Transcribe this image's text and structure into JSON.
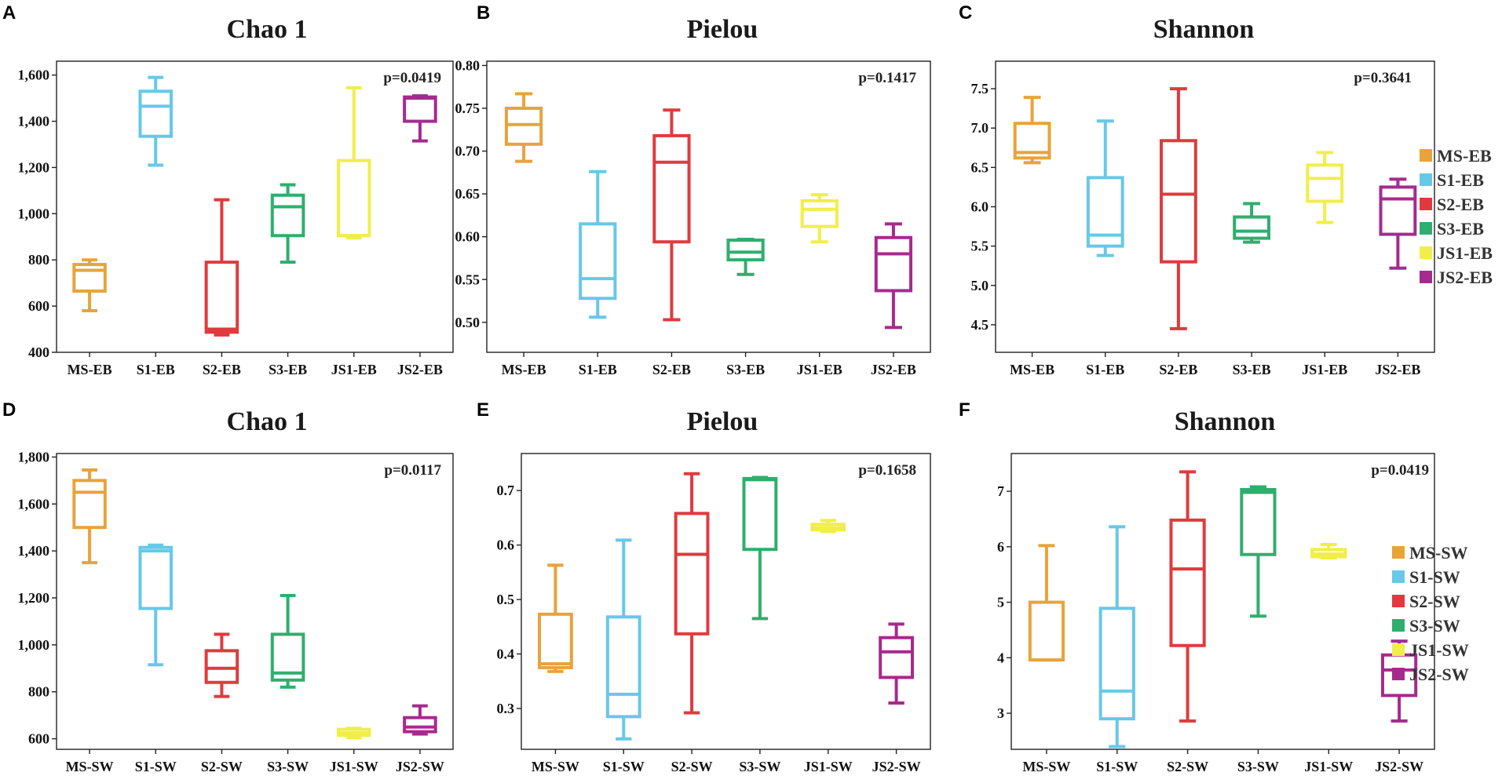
{
  "chart_data": [
    {
      "panel": "A",
      "type": "box",
      "title": "Chao 1",
      "pvalue_label": "p=0.0419",
      "categories": [
        "MS-EB",
        "S1-EB",
        "S2-EB",
        "S3-EB",
        "JS1-EB",
        "JS2-EB"
      ],
      "ylim": [
        400,
        1660
      ],
      "yticks": [
        400,
        600,
        800,
        1000,
        1200,
        1400,
        1600
      ],
      "ytick_labels": [
        "400",
        "600",
        "800",
        "1,000",
        "1,200",
        "1,400",
        "1,600"
      ],
      "boxes": [
        {
          "min": 580,
          "q1": 665,
          "median": 755,
          "q3": 780,
          "max": 800
        },
        {
          "min": 1210,
          "q1": 1335,
          "median": 1465,
          "q3": 1530,
          "max": 1590
        },
        {
          "min": 475,
          "q1": 487,
          "median": 500,
          "q3": 790,
          "max": 1060
        },
        {
          "min": 790,
          "q1": 905,
          "median": 1030,
          "q3": 1080,
          "max": 1125
        },
        {
          "min": 895,
          "q1": 905,
          "median": 905,
          "q3": 1230,
          "max": 1545
        },
        {
          "min": 1315,
          "q1": 1400,
          "median": 1500,
          "q3": 1505,
          "max": 1510
        }
      ]
    },
    {
      "panel": "B",
      "type": "box",
      "title": "Pielou",
      "pvalue_label": "p=0.1417",
      "categories": [
        "MS-EB",
        "S1-EB",
        "S2-EB",
        "S3-EB",
        "JS1-EB",
        "JS2-EB"
      ],
      "ylim": [
        0.465,
        0.805
      ],
      "yticks": [
        0.5,
        0.55,
        0.6,
        0.65,
        0.7,
        0.75,
        0.8
      ],
      "ytick_labels": [
        "0.50",
        "0.55",
        "0.60",
        "0.65",
        "0.70",
        "0.75",
        "0.80"
      ],
      "boxes": [
        {
          "min": 0.688,
          "q1": 0.708,
          "median": 0.731,
          "q3": 0.75,
          "max": 0.767
        },
        {
          "min": 0.506,
          "q1": 0.528,
          "median": 0.551,
          "q3": 0.615,
          "max": 0.676
        },
        {
          "min": 0.503,
          "q1": 0.594,
          "median": 0.687,
          "q3": 0.718,
          "max": 0.748
        },
        {
          "min": 0.556,
          "q1": 0.573,
          "median": 0.582,
          "q3": 0.596,
          "max": 0.597
        },
        {
          "min": 0.594,
          "q1": 0.612,
          "median": 0.632,
          "q3": 0.642,
          "max": 0.649
        },
        {
          "min": 0.494,
          "q1": 0.537,
          "median": 0.58,
          "q3": 0.599,
          "max": 0.615
        }
      ]
    },
    {
      "panel": "C",
      "type": "box",
      "title": "Shannon",
      "pvalue_label": "p=0.3641",
      "categories": [
        "MS-EB",
        "S1-EB",
        "S2-EB",
        "S3-EB",
        "JS1-EB",
        "JS2-EB"
      ],
      "ylim": [
        4.15,
        7.85
      ],
      "yticks": [
        4.5,
        5.0,
        5.5,
        6.0,
        6.5,
        7.0,
        7.5
      ],
      "ytick_labels": [
        "4.5",
        "5.0",
        "5.5",
        "6.0",
        "6.5",
        "7.0",
        "7.5"
      ],
      "boxes": [
        {
          "min": 6.56,
          "q1": 6.62,
          "median": 6.69,
          "q3": 7.06,
          "max": 7.39
        },
        {
          "min": 5.38,
          "q1": 5.5,
          "median": 5.64,
          "q3": 6.37,
          "max": 7.09
        },
        {
          "min": 4.45,
          "q1": 5.3,
          "median": 6.16,
          "q3": 6.84,
          "max": 7.5
        },
        {
          "min": 5.55,
          "q1": 5.6,
          "median": 5.69,
          "q3": 5.87,
          "max": 6.04
        },
        {
          "min": 5.8,
          "q1": 6.07,
          "median": 6.36,
          "q3": 6.53,
          "max": 6.69
        },
        {
          "min": 5.22,
          "q1": 5.65,
          "median": 6.1,
          "q3": 6.25,
          "max": 6.35
        }
      ]
    },
    {
      "panel": "D",
      "type": "box",
      "title": "Chao 1",
      "pvalue_label": "p=0.0117",
      "categories": [
        "MS-SW",
        "S1-SW",
        "S2-SW",
        "S3-SW",
        "JS1-SW",
        "JS2-SW"
      ],
      "ylim": [
        555,
        1815
      ],
      "yticks": [
        600,
        800,
        1000,
        1200,
        1400,
        1600,
        1800
      ],
      "ytick_labels": [
        "600",
        "800",
        "1,000",
        "1,200",
        "1,400",
        "1,600",
        "1,800"
      ],
      "boxes": [
        {
          "min": 1350,
          "q1": 1500,
          "median": 1650,
          "q3": 1700,
          "max": 1745
        },
        {
          "min": 915,
          "q1": 1155,
          "median": 1400,
          "q3": 1415,
          "max": 1425
        },
        {
          "min": 780,
          "q1": 840,
          "median": 900,
          "q3": 975,
          "max": 1045
        },
        {
          "min": 820,
          "q1": 850,
          "median": 880,
          "q3": 1045,
          "max": 1210
        },
        {
          "min": 605,
          "q1": 615,
          "median": 625,
          "q3": 640,
          "max": 645
        },
        {
          "min": 620,
          "q1": 630,
          "median": 650,
          "q3": 690,
          "max": 740
        }
      ]
    },
    {
      "panel": "E",
      "type": "box",
      "title": "Pielou",
      "pvalue_label": "p=0.1658",
      "categories": [
        "MS-SW",
        "S1-SW",
        "S2-SW",
        "S3-SW",
        "JS1-SW",
        "JS2-SW"
      ],
      "ylim": [
        0.225,
        0.768
      ],
      "yticks": [
        0.3,
        0.4,
        0.5,
        0.6,
        0.7
      ],
      "ytick_labels": [
        "0.3",
        "0.4",
        "0.5",
        "0.6",
        "0.7"
      ],
      "boxes": [
        {
          "min": 0.368,
          "q1": 0.375,
          "median": 0.382,
          "q3": 0.473,
          "max": 0.563
        },
        {
          "min": 0.244,
          "q1": 0.285,
          "median": 0.326,
          "q3": 0.468,
          "max": 0.609
        },
        {
          "min": 0.292,
          "q1": 0.437,
          "median": 0.583,
          "q3": 0.658,
          "max": 0.731
        },
        {
          "min": 0.465,
          "q1": 0.592,
          "median": 0.72,
          "q3": 0.722,
          "max": 0.724
        },
        {
          "min": 0.625,
          "q1": 0.628,
          "median": 0.632,
          "q3": 0.638,
          "max": 0.645
        },
        {
          "min": 0.31,
          "q1": 0.357,
          "median": 0.404,
          "q3": 0.43,
          "max": 0.455
        }
      ]
    },
    {
      "panel": "F",
      "type": "box",
      "title": "Shannon",
      "pvalue_label": "p=0.0419",
      "categories": [
        "MS-SW",
        "S1-SW",
        "S2-SW",
        "S3-SW",
        "JS1-SW",
        "JS2-SW"
      ],
      "ylim": [
        2.35,
        7.68
      ],
      "yticks": [
        3,
        4,
        5,
        6,
        7
      ],
      "ytick_labels": [
        "3",
        "4",
        "5",
        "6",
        "7"
      ],
      "boxes": [
        {
          "min": 3.96,
          "q1": 3.96,
          "median": 3.96,
          "q3": 5.0,
          "max": 6.02
        },
        {
          "min": 2.4,
          "q1": 2.9,
          "median": 3.4,
          "q3": 4.89,
          "max": 6.36
        },
        {
          "min": 2.86,
          "q1": 4.22,
          "median": 5.6,
          "q3": 6.48,
          "max": 7.35
        },
        {
          "min": 4.75,
          "q1": 5.86,
          "median": 6.98,
          "q3": 7.03,
          "max": 7.08
        },
        {
          "min": 5.8,
          "q1": 5.82,
          "median": 5.87,
          "q3": 5.95,
          "max": 6.04
        },
        {
          "min": 2.86,
          "q1": 3.32,
          "median": 3.78,
          "q3": 4.05,
          "max": 4.3
        }
      ]
    }
  ],
  "colors": [
    "#e8a33a",
    "#67c8e8",
    "#e03a3e",
    "#2fae6e",
    "#f1ee4a",
    "#a62a8e"
  ],
  "legend_top": [
    "MS-EB",
    "S1-EB",
    "S2-EB",
    "S3-EB",
    "JS1-EB",
    "JS2-EB"
  ],
  "legend_bottom": [
    "MS-SW",
    "S1-SW",
    "S2-SW",
    "S3-SW",
    "JS1-SW",
    "JS2-SW"
  ]
}
